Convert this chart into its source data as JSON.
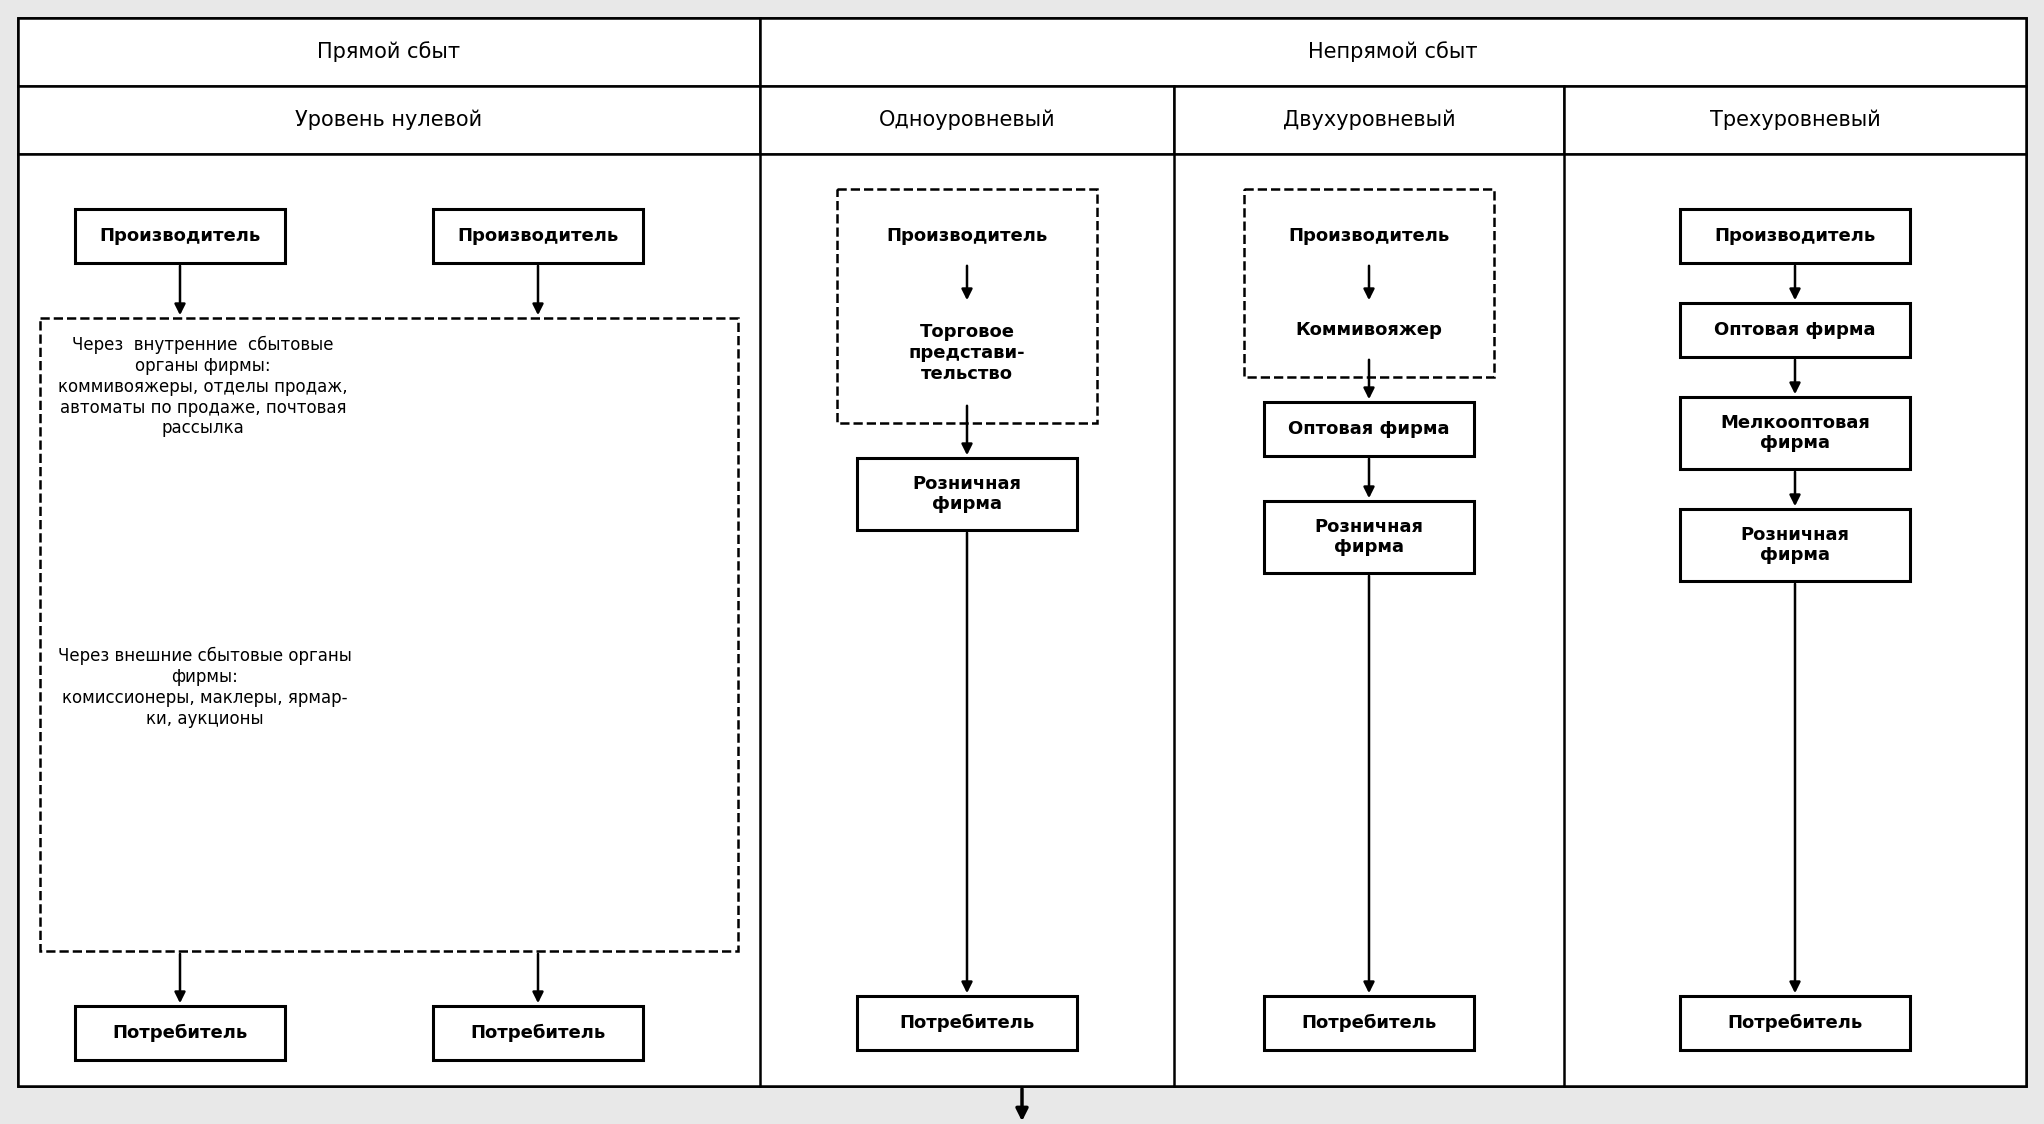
{
  "title_row1_left": "Прямой сбыт",
  "title_row1_right": "Непрямой сбыт",
  "title_row2_col1": "Уровень нулевой",
  "title_row2_col2": "Одноуровневый",
  "title_row2_col3": "Двухуровневый",
  "title_row2_col4": "Трехуровневый",
  "col1_boxes": [
    "Производитель",
    "Производитель",
    "Потребитель",
    "Потребитель"
  ],
  "col1_text1": "Через  внутренние  сбытовые\nорганы фирмы:\nкоммивояжеры, отделы продаж,\nавтоматы по продаже, почтовая\nрассылка",
  "col1_text2": "Через внешние сбытовые органы\nфирмы:\nкомиссионеры, маклеры, ярмар-\nки, аукционы",
  "col2_boxes": [
    "Производитель",
    "Торговое\nпредстави-\nтельство",
    "Розничная\nфирма",
    "Потребитель"
  ],
  "col3_boxes": [
    "Производитель",
    "Коммивояжер",
    "Оптовая фирма",
    "Розничная\nфирма",
    "Потребитель"
  ],
  "col4_boxes": [
    "Производитель",
    "Оптовая фирма",
    "Мелкооптовая\nфирма",
    "Розничная\nфирма",
    "Потребитель"
  ],
  "bg_color": "#e8e8e8",
  "box_fill": "#ffffff",
  "border_color": "#000000",
  "font_size_header": 15,
  "font_size_box": 13,
  "font_size_content": 12
}
